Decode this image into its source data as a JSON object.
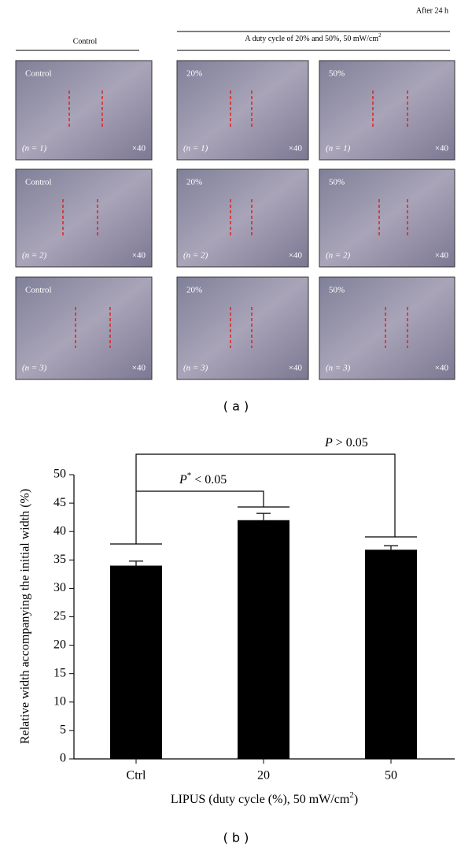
{
  "panel_a": {
    "time_label": "After 24 h",
    "control_header": "Control",
    "treatment_header": [
      "A duty cycle of 20% and 50%, 50 mW/cm",
      "2"
    ],
    "caption": "( a )",
    "images": [
      [
        {
          "label": "Control",
          "n": "(n = 1)",
          "mag": "×40"
        },
        {
          "label": "20%",
          "n": "(n = 1)",
          "mag": "×40"
        },
        {
          "label": "50%",
          "n": "(n = 1)",
          "mag": "×40"
        }
      ],
      [
        {
          "label": "Control",
          "n": "(n = 2)",
          "mag": "×40"
        },
        {
          "label": "20%",
          "n": "(n = 2)",
          "mag": "×40"
        },
        {
          "label": "50%",
          "n": "(n = 2)",
          "mag": "×40"
        }
      ],
      [
        {
          "label": "Control",
          "n": "(n = 3)",
          "mag": "×40"
        },
        {
          "label": "20%",
          "n": "(n = 3)",
          "mag": "×40"
        },
        {
          "label": "50%",
          "n": "(n = 3)",
          "mag": "×40"
        }
      ]
    ]
  },
  "chart_data": {
    "type": "bar",
    "caption": "( b )",
    "categories": [
      "Ctrl",
      "20",
      "50"
    ],
    "values": [
      34,
      42,
      36.8
    ],
    "errors": [
      0.8,
      1.2,
      0.7
    ],
    "color": "#000000",
    "ylim": [
      0,
      50
    ],
    "yticks": [
      0,
      5,
      10,
      15,
      20,
      25,
      30,
      35,
      40,
      45,
      50
    ],
    "ylabel": "Relative width accompanying the initial width (%)",
    "xlabel": [
      "LIPUS (duty cycle (%), 50 mW/cm",
      "2",
      ")"
    ],
    "annotations": [
      [
        "P",
        "*",
        " < 0.05"
      ],
      [
        "P",
        "",
        " > 0.05"
      ]
    ]
  }
}
